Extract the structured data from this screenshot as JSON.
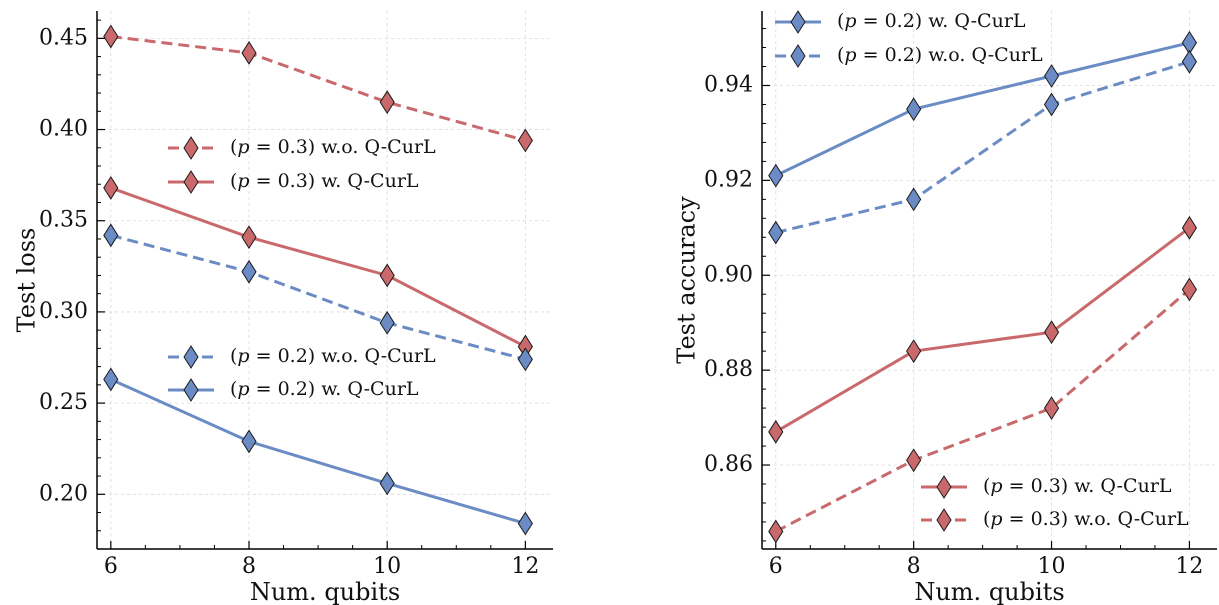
{
  "chart_data": [
    {
      "type": "line",
      "title": "",
      "xlabel": "Num. qubits",
      "ylabel": "Test loss",
      "x": [
        6,
        8,
        10,
        12
      ],
      "xlim": [
        5.8,
        12.4
      ],
      "ylim": [
        0.17,
        0.465
      ],
      "xticks": [
        6,
        8,
        10,
        12
      ],
      "xtick_labels": [
        "6",
        "8",
        "10",
        "12"
      ],
      "yticks": [
        0.2,
        0.25,
        0.3,
        0.35,
        0.4,
        0.45
      ],
      "ytick_labels": [
        "0.20",
        "0.25",
        "0.30",
        "0.35",
        "0.40",
        "0.45"
      ],
      "grid": true,
      "marker": "thin-diamond",
      "series": [
        {
          "name": "(p = 0.3) w.o. Q-CurL",
          "color": "#c9696b",
          "dash": true,
          "values": [
            0.451,
            0.442,
            0.415,
            0.394
          ]
        },
        {
          "name": "(p = 0.3) w. Q-CurL",
          "color": "#c9696b",
          "dash": false,
          "values": [
            0.368,
            0.341,
            0.32,
            0.281
          ]
        },
        {
          "name": "(p = 0.2) w.o. Q-CurL",
          "color": "#6b8bc4",
          "dash": true,
          "values": [
            0.342,
            0.322,
            0.294,
            0.274
          ]
        },
        {
          "name": "(p = 0.2) w. Q-CurL",
          "color": "#6b8bc4",
          "dash": false,
          "values": [
            0.263,
            0.229,
            0.206,
            0.184
          ]
        }
      ],
      "legends": [
        {
          "placement": "upper-center",
          "entries": [
            0,
            1
          ]
        },
        {
          "placement": "lower-center",
          "entries": [
            2,
            3
          ]
        }
      ]
    },
    {
      "type": "line",
      "title": "",
      "xlabel": "Num. qubits",
      "ylabel": "Test accuracy",
      "x": [
        6,
        8,
        10,
        12
      ],
      "xlim": [
        5.8,
        12.4
      ],
      "ylim": [
        0.8423,
        0.9557
      ],
      "xticks": [
        6,
        8,
        10,
        12
      ],
      "xtick_labels": [
        "6",
        "8",
        "10",
        "12"
      ],
      "yticks": [
        0.86,
        0.88,
        0.9,
        0.92,
        0.94
      ],
      "ytick_labels": [
        "0.86",
        "0.88",
        "0.90",
        "0.92",
        "0.94"
      ],
      "grid": true,
      "marker": "thin-diamond",
      "series": [
        {
          "name": "(p = 0.2) w. Q-CurL",
          "color": "#6b8bc4",
          "dash": false,
          "values": [
            0.921,
            0.935,
            0.942,
            0.949
          ]
        },
        {
          "name": "(p = 0.2) w.o. Q-CurL",
          "color": "#6b8bc4",
          "dash": true,
          "values": [
            0.909,
            0.916,
            0.936,
            0.945
          ]
        },
        {
          "name": "(p = 0.3) w. Q-CurL",
          "color": "#c9696b",
          "dash": false,
          "values": [
            0.867,
            0.884,
            0.888,
            0.91
          ]
        },
        {
          "name": "(p = 0.3) w.o. Q-CurL",
          "color": "#c9696b",
          "dash": true,
          "values": [
            0.846,
            0.861,
            0.872,
            0.897
          ]
        }
      ],
      "legends": [
        {
          "placement": "upper-left",
          "entries": [
            0,
            1
          ]
        },
        {
          "placement": "lower-right",
          "entries": [
            2,
            3
          ]
        }
      ]
    }
  ]
}
